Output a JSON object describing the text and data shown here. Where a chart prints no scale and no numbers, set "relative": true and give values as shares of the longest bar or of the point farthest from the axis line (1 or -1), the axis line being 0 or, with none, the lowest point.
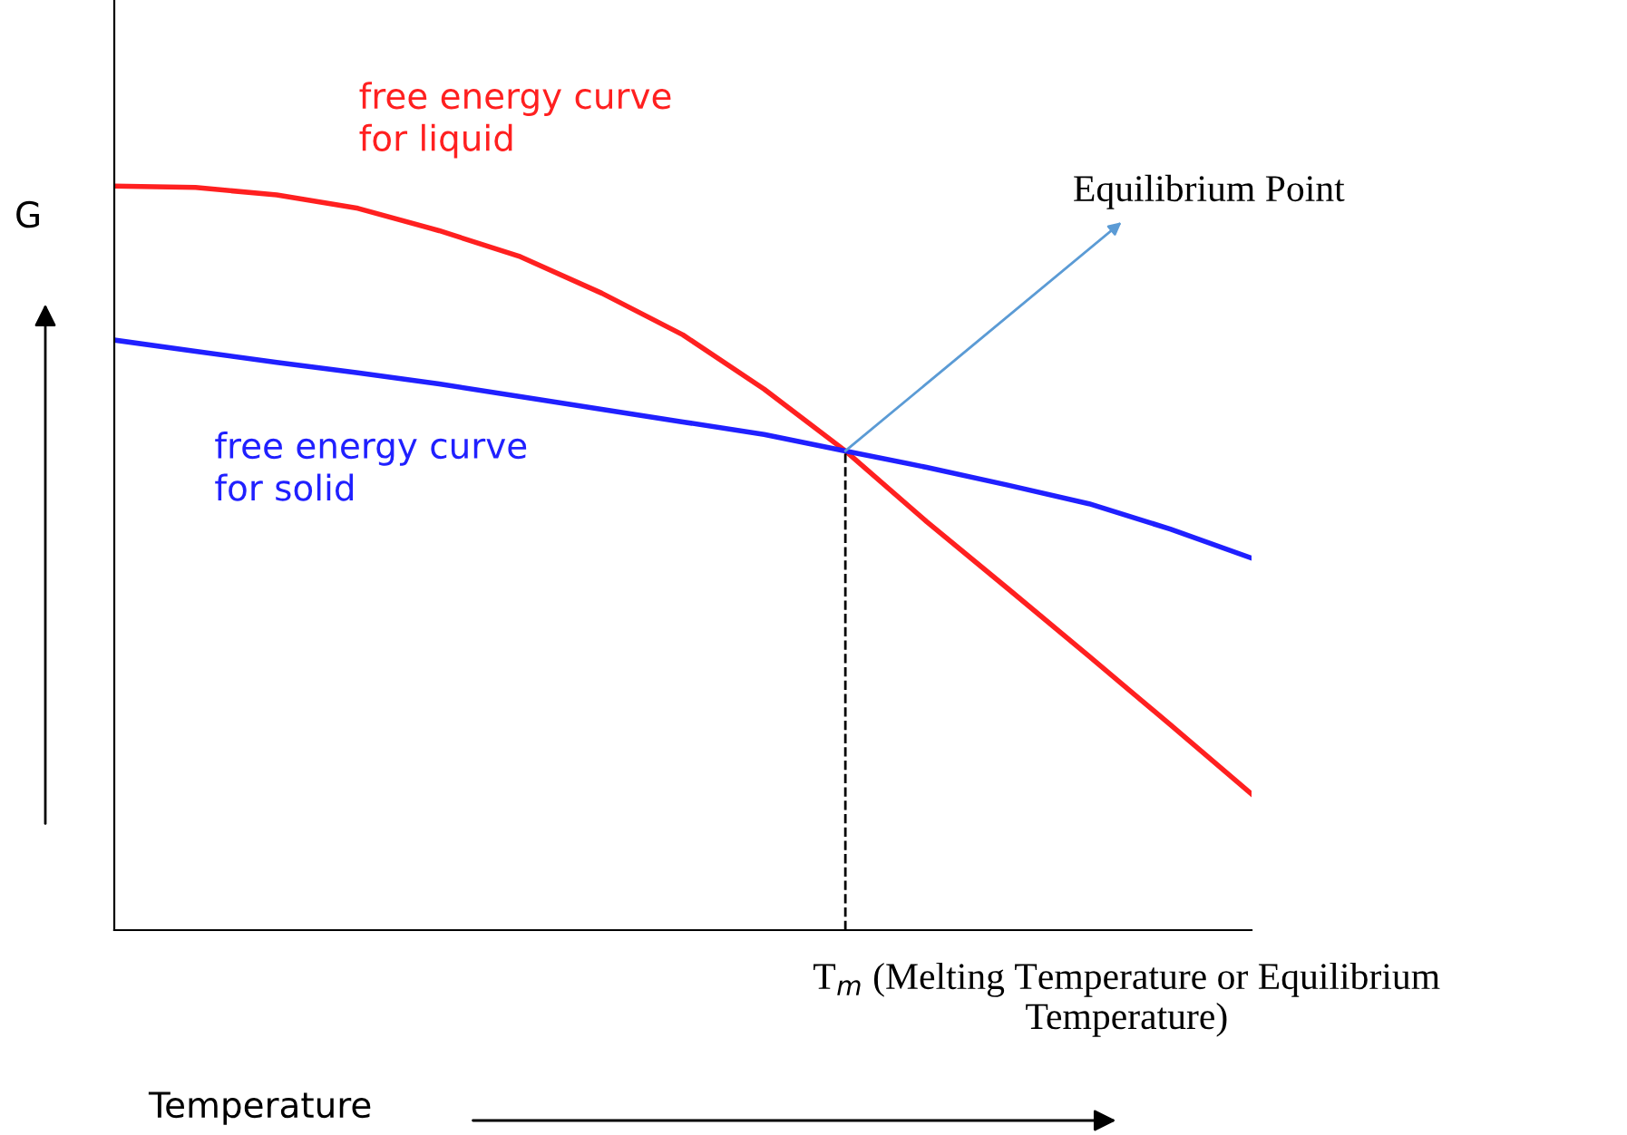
{
  "chart_data": {
    "type": "line",
    "relative": true,
    "ylabel": "G",
    "xlabel": "Temperature",
    "marker": "none",
    "line_style": "solid",
    "categories": [
      null,
      null,
      null,
      null,
      null,
      null,
      null,
      null,
      null,
      null,
      null,
      null,
      null,
      null,
      null
    ],
    "series": [
      {
        "name": "free energy curve\nfor liquid",
        "color": "#ff2020",
        "values": [
          1.0,
          0.998,
          0.988,
          0.97,
          0.94,
          0.905,
          0.856,
          0.8,
          0.727,
          0.644,
          0.549,
          0.459,
          0.368,
          0.276,
          0.183
        ]
      },
      {
        "name": "free energy curve\nfor solid",
        "color": "#2020ff",
        "values": [
          0.793,
          0.778,
          0.763,
          0.749,
          0.734,
          0.717,
          0.7,
          0.683,
          0.666,
          0.644,
          0.622,
          0.598,
          0.573,
          0.539,
          0.5
        ]
      }
    ],
    "annotations": [
      "Equilibrium Point",
      "T$_{m}$ (Melting Temperature or Equilibrium\nTemperature)"
    ]
  }
}
